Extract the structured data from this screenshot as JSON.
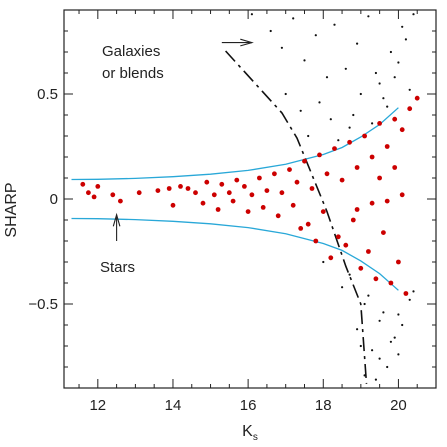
{
  "chart_data": {
    "type": "scatter",
    "xlabel": "K",
    "xlabel_sub": "s",
    "ylabel": "SHARP",
    "xlim": [
      11.1,
      21.0
    ],
    "ylim": [
      -0.9,
      0.9
    ],
    "x_ticks": [
      12,
      14,
      16,
      18,
      20
    ],
    "x_tick_labels": [
      "12",
      "14",
      "16",
      "18",
      "20"
    ],
    "y_ticks": [
      -0.5,
      0,
      0.5
    ],
    "y_tick_labels": [
      "−0.5",
      "0",
      "0.5"
    ],
    "grid": false,
    "colors": {
      "stars": "#cc0000",
      "other": "#111111",
      "envelope": "#29a8d8",
      "separator": "#111111",
      "axes": "#222222"
    },
    "annotations": [
      {
        "lines": [
          "Galaxies",
          "or blends"
        ],
        "arrow_from": [
          15.3,
          0.745
        ],
        "arrow_to": [
          16.1,
          0.745
        ]
      },
      {
        "lines": [
          "Stars"
        ],
        "arrow_from": [
          12.5,
          -0.2
        ],
        "arrow_to": [
          12.5,
          -0.075
        ]
      }
    ],
    "series": [
      {
        "role": "envelope_upper",
        "style": "line",
        "x": [
          11.3,
          12,
          13,
          14,
          15,
          16,
          17,
          18,
          18.5,
          19,
          19.5,
          20
        ],
        "y": [
          0.093,
          0.094,
          0.098,
          0.106,
          0.118,
          0.136,
          0.165,
          0.212,
          0.245,
          0.295,
          0.355,
          0.435
        ]
      },
      {
        "role": "envelope_lower",
        "style": "line",
        "x": [
          11.3,
          12,
          13,
          14,
          15,
          16,
          17,
          18,
          18.5,
          19,
          19.5,
          20
        ],
        "y": [
          -0.093,
          -0.094,
          -0.098,
          -0.106,
          -0.118,
          -0.136,
          -0.165,
          -0.212,
          -0.245,
          -0.295,
          -0.355,
          -0.435
        ]
      },
      {
        "role": "separator",
        "style": "dashed",
        "x": [
          15.4,
          16.9,
          17.3,
          18.1,
          18.6,
          19.0,
          19.15
        ],
        "y": [
          0.705,
          0.41,
          0.29,
          -0.06,
          -0.32,
          -0.5,
          -0.88
        ]
      },
      {
        "role": "stars",
        "style": "points",
        "x": [
          11.6,
          11.75,
          11.9,
          12.0,
          12.6,
          12.4,
          13.1,
          13.6,
          13.9,
          14.2,
          14.4,
          14.6,
          14.9,
          15.1,
          15.3,
          15.5,
          15.7,
          15.9,
          16.1,
          16.3,
          16.5,
          16.7,
          16.9,
          17.1,
          17.3,
          17.5,
          17.7,
          17.9,
          18.1,
          18.3,
          18.5,
          18.7,
          18.9,
          19.1,
          19.3,
          19.5,
          19.7,
          19.9,
          20.1,
          20.3,
          20.5,
          14.0,
          14.8,
          15.2,
          15.6,
          16.0,
          16.4,
          16.8,
          17.2,
          17.6,
          18.0,
          18.4,
          18.8,
          19.2,
          19.6,
          20.0,
          17.4,
          17.8,
          18.2,
          18.6,
          19.0,
          19.4,
          19.8,
          20.2,
          18.9,
          19.3,
          19.7,
          20.1,
          19.5,
          19.9
        ],
        "y": [
          0.07,
          0.03,
          0.01,
          0.06,
          -0.01,
          0.02,
          0.03,
          0.04,
          0.05,
          0.06,
          0.05,
          0.03,
          0.08,
          0.02,
          0.07,
          0.03,
          0.09,
          0.06,
          0.02,
          0.1,
          0.04,
          0.12,
          0.03,
          0.14,
          0.08,
          0.18,
          0.05,
          0.21,
          0.12,
          0.24,
          0.09,
          0.27,
          0.15,
          0.3,
          0.2,
          0.36,
          0.25,
          0.38,
          0.33,
          0.43,
          0.48,
          -0.03,
          -0.02,
          -0.05,
          -0.01,
          -0.06,
          -0.04,
          -0.08,
          -0.03,
          -0.12,
          -0.06,
          -0.18,
          -0.1,
          -0.25,
          -0.16,
          -0.3,
          -0.14,
          -0.2,
          -0.28,
          -0.22,
          -0.33,
          -0.38,
          -0.4,
          -0.45,
          -0.05,
          -0.02,
          -0.01,
          0.02,
          0.1,
          0.15
        ]
      },
      {
        "role": "other",
        "style": "points",
        "x": [
          16.1,
          16.6,
          16.9,
          17.2,
          17.5,
          17.8,
          18.1,
          18.3,
          18.6,
          18.9,
          19.2,
          19.5,
          19.8,
          20.1,
          20.4,
          17.0,
          17.4,
          17.9,
          18.2,
          18.7,
          19.0,
          19.4,
          19.7,
          20.0,
          20.3,
          17.6,
          18.4,
          18.8,
          19.3,
          19.6,
          19.9,
          20.2,
          18.0,
          18.5,
          19.1,
          19.5,
          19.9,
          18.9,
          19.3,
          19.7,
          20.0,
          20.3,
          19.1,
          19.5,
          19.8,
          20.1,
          18.7,
          19.2,
          19.6,
          20.0,
          20.4,
          19.0,
          19.4
        ],
        "y": [
          0.88,
          0.8,
          0.72,
          0.86,
          0.66,
          0.78,
          0.58,
          0.83,
          0.62,
          0.74,
          0.87,
          0.55,
          0.7,
          0.82,
          0.88,
          0.5,
          0.42,
          0.46,
          0.38,
          0.34,
          0.5,
          0.6,
          0.44,
          0.65,
          0.52,
          0.3,
          0.28,
          0.4,
          0.36,
          0.48,
          0.58,
          0.76,
          -0.3,
          -0.42,
          -0.5,
          -0.58,
          -0.66,
          -0.62,
          -0.72,
          -0.8,
          -0.55,
          -0.48,
          -0.84,
          -0.76,
          -0.68,
          -0.6,
          -0.36,
          -0.46,
          -0.54,
          -0.74,
          -0.44,
          -0.7,
          -0.86
        ]
      }
    ]
  }
}
